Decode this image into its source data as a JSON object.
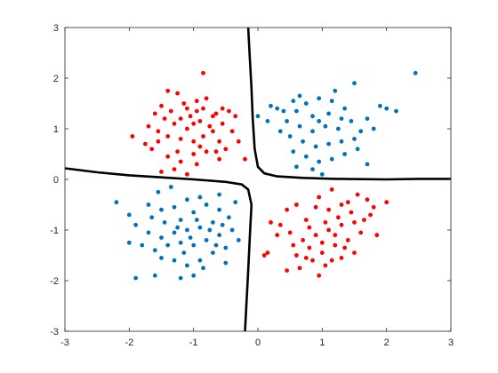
{
  "chart_data": {
    "type": "scatter",
    "title": "",
    "xlabel": "",
    "ylabel": "",
    "xlim": [
      -3,
      3
    ],
    "ylim": [
      -3,
      3
    ],
    "grid": false,
    "xticks": [
      "-3",
      "-2",
      "-1",
      "0",
      "1",
      "2",
      "3"
    ],
    "yticks": [
      "-3",
      "-2",
      "-1",
      "0",
      "1",
      "2",
      "3"
    ],
    "colors": {
      "red": "#ff0000",
      "blue": "#0072bd",
      "boundary": "#000000",
      "axis": "#262626"
    },
    "series": [
      {
        "color": "red",
        "points": [
          [
            -1.15,
            1.5
          ],
          [
            -0.95,
            1.35
          ],
          [
            -0.8,
            1.6
          ],
          [
            -0.85,
            2.1
          ],
          [
            -1.4,
            1.75
          ],
          [
            -1.25,
            1.7
          ],
          [
            -1.6,
            1.3
          ],
          [
            -1.45,
            1.2
          ],
          [
            -1.3,
            1.1
          ],
          [
            -1.1,
            1.0
          ],
          [
            -0.9,
            1.15
          ],
          [
            -0.7,
            1.25
          ],
          [
            -0.55,
            1.1
          ],
          [
            -0.4,
            0.95
          ],
          [
            -0.3,
            0.75
          ],
          [
            -0.35,
            1.25
          ],
          [
            -0.55,
            1.4
          ],
          [
            -0.65,
            1.3
          ],
          [
            -1.95,
            0.85
          ],
          [
            -1.7,
            1.05
          ],
          [
            -1.55,
            0.95
          ],
          [
            -1.4,
            0.85
          ],
          [
            -1.2,
            0.8
          ],
          [
            -1.0,
            0.75
          ],
          [
            -0.85,
            0.85
          ],
          [
            -0.7,
            0.95
          ],
          [
            -0.5,
            0.6
          ],
          [
            -0.6,
            0.4
          ],
          [
            -0.8,
            0.55
          ],
          [
            -1.0,
            0.5
          ],
          [
            -1.2,
            0.35
          ],
          [
            -1.4,
            0.45
          ],
          [
            -1.65,
            0.6
          ],
          [
            -1.3,
            0.2
          ],
          [
            -1.1,
            0.1
          ],
          [
            -0.95,
            0.3
          ],
          [
            -1.5,
            1.45
          ],
          [
            -1.35,
            1.35
          ],
          [
            -1.05,
            1.25
          ],
          [
            -0.85,
            1.4
          ],
          [
            -0.6,
            0.75
          ],
          [
            -0.45,
            1.35
          ],
          [
            -1.5,
            0.15
          ],
          [
            -1.25,
            0.55
          ],
          [
            -0.2,
            0.4
          ],
          [
            -0.75,
            1.05
          ],
          [
            -1.0,
            1.1
          ],
          [
            -1.2,
            1.2
          ],
          [
            -0.9,
            0.65
          ],
          [
            -0.65,
            0.55
          ],
          [
            -1.55,
            0.75
          ],
          [
            -1.75,
            0.7
          ],
          [
            -1.1,
            1.4
          ],
          [
            -0.95,
            1.55
          ],
          [
            0.6,
            -0.5
          ],
          [
            0.75,
            -0.8
          ],
          [
            0.9,
            -0.55
          ],
          [
            1.1,
            -0.6
          ],
          [
            1.3,
            -0.5
          ],
          [
            1.55,
            -0.3
          ],
          [
            1.8,
            -0.55
          ],
          [
            2.0,
            -0.45
          ],
          [
            1.75,
            -0.7
          ],
          [
            1.5,
            -0.85
          ],
          [
            1.3,
            -0.9
          ],
          [
            1.1,
            -1.0
          ],
          [
            0.9,
            -1.1
          ],
          [
            0.7,
            -1.2
          ],
          [
            0.5,
            -1.05
          ],
          [
            0.35,
            -0.9
          ],
          [
            0.2,
            -0.85
          ],
          [
            0.45,
            -0.6
          ],
          [
            0.6,
            -1.5
          ],
          [
            0.8,
            -1.35
          ],
          [
            1.0,
            -1.45
          ],
          [
            1.2,
            -1.3
          ],
          [
            1.4,
            -1.2
          ],
          [
            1.6,
            -1.05
          ],
          [
            1.3,
            -1.55
          ],
          [
            1.05,
            -1.7
          ],
          [
            0.85,
            -1.6
          ],
          [
            0.65,
            -1.75
          ],
          [
            0.45,
            -1.8
          ],
          [
            0.1,
            -1.5
          ],
          [
            0.15,
            -1.45
          ],
          [
            1.5,
            -1.45
          ],
          [
            1.85,
            -1.1
          ],
          [
            0.95,
            -0.35
          ],
          [
            1.15,
            -0.2
          ],
          [
            1.05,
            -0.85
          ],
          [
            0.8,
            -0.95
          ],
          [
            1.25,
            -0.75
          ],
          [
            1.45,
            -0.65
          ],
          [
            1.65,
            -0.8
          ],
          [
            1.2,
            -1.1
          ],
          [
            1.0,
            -1.25
          ],
          [
            0.55,
            -1.3
          ],
          [
            0.75,
            -1.55
          ],
          [
            1.35,
            -1.35
          ],
          [
            1.7,
            -0.4
          ],
          [
            0.3,
            -1.1
          ],
          [
            0.95,
            -1.9
          ],
          [
            1.15,
            -1.6
          ],
          [
            1.4,
            -0.45
          ]
        ]
      },
      {
        "color": "blue",
        "points": [
          [
            0.55,
            1.55
          ],
          [
            0.75,
            1.5
          ],
          [
            0.95,
            1.6
          ],
          [
            1.2,
            1.75
          ],
          [
            1.5,
            1.9
          ],
          [
            1.35,
            1.4
          ],
          [
            1.1,
            1.3
          ],
          [
            0.85,
            1.25
          ],
          [
            0.6,
            1.35
          ],
          [
            0.4,
            1.35
          ],
          [
            0.2,
            1.45
          ],
          [
            0.3,
            1.4
          ],
          [
            0.45,
            1.15
          ],
          [
            0.65,
            1.05
          ],
          [
            0.85,
            0.95
          ],
          [
            1.05,
            1.05
          ],
          [
            1.25,
            1.0
          ],
          [
            1.45,
            1.15
          ],
          [
            1.7,
            1.2
          ],
          [
            1.6,
            0.95
          ],
          [
            1.5,
            0.8
          ],
          [
            1.3,
            0.75
          ],
          [
            1.1,
            0.7
          ],
          [
            0.9,
            0.65
          ],
          [
            0.7,
            0.75
          ],
          [
            0.5,
            0.85
          ],
          [
            0.35,
            0.95
          ],
          [
            0.55,
            0.55
          ],
          [
            0.75,
            0.45
          ],
          [
            0.95,
            0.35
          ],
          [
            1.15,
            0.4
          ],
          [
            1.35,
            0.5
          ],
          [
            1.55,
            0.6
          ],
          [
            1.7,
            0.3
          ],
          [
            0.85,
            0.2
          ],
          [
            1.0,
            0.1
          ],
          [
            0.6,
            0.25
          ],
          [
            1.9,
            1.45
          ],
          [
            2.0,
            1.4
          ],
          [
            2.15,
            1.35
          ],
          [
            2.45,
            2.1
          ],
          [
            1.8,
            1.0
          ],
          [
            0.0,
            1.25
          ],
          [
            0.15,
            1.15
          ],
          [
            0.95,
            1.15
          ],
          [
            1.15,
            1.55
          ],
          [
            0.65,
            1.65
          ],
          [
            1.3,
            1.2
          ],
          [
            -1.2,
            -0.8
          ],
          [
            -1.0,
            -0.65
          ],
          [
            -0.8,
            -0.5
          ],
          [
            -0.6,
            -0.6
          ],
          [
            -0.45,
            -0.75
          ],
          [
            -0.7,
            -0.85
          ],
          [
            -0.9,
            -0.95
          ],
          [
            -1.1,
            -1.0
          ],
          [
            -1.3,
            -1.05
          ],
          [
            -1.5,
            -1.15
          ],
          [
            -1.7,
            -1.05
          ],
          [
            -1.9,
            -0.9
          ],
          [
            -2.2,
            -0.45
          ],
          [
            -2.0,
            -0.7
          ],
          [
            -1.8,
            -1.3
          ],
          [
            -1.6,
            -1.4
          ],
          [
            -1.4,
            -1.3
          ],
          [
            -1.2,
            -1.25
          ],
          [
            -1.0,
            -1.3
          ],
          [
            -0.8,
            -1.2
          ],
          [
            -0.6,
            -1.1
          ],
          [
            -0.4,
            -1.0
          ],
          [
            -0.3,
            -1.2
          ],
          [
            -0.5,
            -1.35
          ],
          [
            -0.7,
            -1.45
          ],
          [
            -0.9,
            -1.6
          ],
          [
            -1.1,
            -1.7
          ],
          [
            -1.3,
            -1.6
          ],
          [
            -1.5,
            -1.55
          ],
          [
            -1.0,
            -1.9
          ],
          [
            -1.6,
            -1.9
          ],
          [
            -1.9,
            -1.95
          ],
          [
            -1.3,
            -0.55
          ],
          [
            -1.1,
            -0.4
          ],
          [
            -0.9,
            -0.35
          ],
          [
            -0.6,
            -0.3
          ],
          [
            -1.5,
            -0.6
          ],
          [
            -1.7,
            -0.5
          ],
          [
            -2.0,
            -1.25
          ],
          [
            -0.5,
            -1.65
          ],
          [
            -1.2,
            -1.95
          ],
          [
            -0.85,
            -1.75
          ],
          [
            -1.05,
            -1.15
          ],
          [
            -1.25,
            -0.95
          ],
          [
            -0.75,
            -1.0
          ],
          [
            -1.45,
            -0.85
          ],
          [
            -0.95,
            -0.8
          ],
          [
            -0.55,
            -0.9
          ],
          [
            -1.55,
            -0.25
          ],
          [
            -1.35,
            -0.15
          ],
          [
            -1.65,
            -0.75
          ],
          [
            -0.35,
            -0.45
          ],
          [
            -1.15,
            -1.45
          ],
          [
            -0.65,
            -1.3
          ]
        ]
      }
    ],
    "boundary_curves": [
      [
        [
          -3,
          0.22
        ],
        [
          -2.5,
          0.14
        ],
        [
          -2.0,
          0.08
        ],
        [
          -1.5,
          0.04
        ],
        [
          -1.0,
          0.0
        ],
        [
          -0.5,
          -0.05
        ],
        [
          -0.25,
          -0.1
        ],
        [
          -0.15,
          -0.2
        ],
        [
          -0.1,
          -0.5
        ],
        [
          -0.12,
          -1.0
        ],
        [
          -0.15,
          -1.8
        ],
        [
          -0.18,
          -2.5
        ],
        [
          -0.2,
          -3
        ]
      ],
      [
        [
          -0.15,
          3
        ],
        [
          -0.13,
          2.5
        ],
        [
          -0.1,
          1.8
        ],
        [
          -0.08,
          1.2
        ],
        [
          -0.05,
          0.6
        ],
        [
          0.0,
          0.25
        ],
        [
          0.1,
          0.12
        ],
        [
          0.3,
          0.06
        ],
        [
          0.7,
          0.03
        ],
        [
          1.2,
          0.01
        ],
        [
          2.0,
          0.0
        ],
        [
          2.5,
          0.01
        ],
        [
          3.0,
          0.01
        ]
      ]
    ]
  }
}
